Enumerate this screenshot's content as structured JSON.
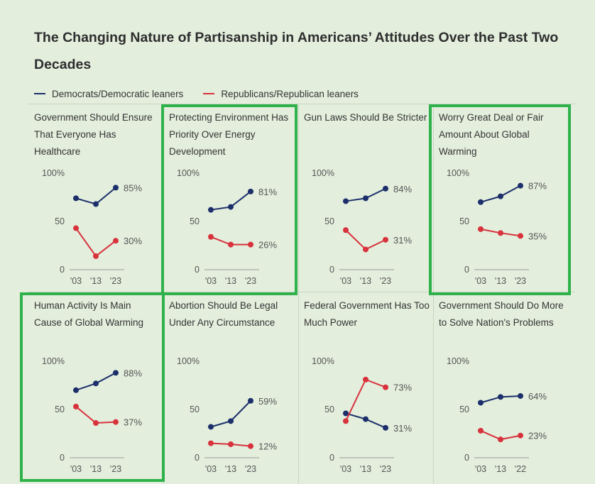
{
  "title": "The Changing Nature of Partisanship in Americans’ Attitudes Over the Past Two Decades",
  "legend": {
    "dem": "Democrats/Democratic leaners",
    "rep": "Republicans/Republican leaners"
  },
  "colors": {
    "dem": "#1c2f6b",
    "rep": "#d8323c",
    "highlight": "#2fb24b"
  },
  "chart_data": {
    "type": "line",
    "y_ticks": [
      "100%",
      "50",
      "0"
    ],
    "ylim": [
      0,
      100
    ],
    "panels": [
      {
        "title": "Government  Should Ensure That Everyone Has Healthcare",
        "x_labels": [
          "'03",
          "'13",
          "'23"
        ],
        "series": [
          {
            "name": "Democrats/Democratic leaners",
            "values": [
              74,
              68,
              85
            ],
            "end_label": "85%"
          },
          {
            "name": "Republicans/Republican leaners",
            "values": [
              43,
              14,
              30
            ],
            "end_label": "30%"
          }
        ],
        "highlighted": false
      },
      {
        "title": "Protecting Environment Has Priority Over Energy Development",
        "x_labels": [
          "'03",
          "'13",
          "'23"
        ],
        "series": [
          {
            "name": "Democrats/Democratic leaners",
            "values": [
              62,
              65,
              81
            ],
            "end_label": "81%"
          },
          {
            "name": "Republicans/Republican leaners",
            "values": [
              34,
              26,
              26
            ],
            "end_label": "26%"
          }
        ],
        "highlighted": true
      },
      {
        "title": "Gun Laws Should Be Stricter",
        "x_labels": [
          "'03",
          "'13",
          "'23"
        ],
        "series": [
          {
            "name": "Democrats/Democratic leaners",
            "values": [
              71,
              74,
              84
            ],
            "end_label": "84%"
          },
          {
            "name": "Republicans/Republican leaners",
            "values": [
              41,
              21,
              31
            ],
            "end_label": "31%"
          }
        ],
        "highlighted": false
      },
      {
        "title": "Worry Great Deal or Fair Amount About Global Warming",
        "x_labels": [
          "'03",
          "'13",
          "'23"
        ],
        "series": [
          {
            "name": "Democrats/Democratic leaners",
            "values": [
              70,
              76,
              87
            ],
            "end_label": "87%"
          },
          {
            "name": "Republicans/Republican leaners",
            "values": [
              42,
              38,
              35
            ],
            "end_label": "35%"
          }
        ],
        "highlighted": true
      },
      {
        "title": "Human Activity Is Main Cause of Global Warming",
        "x_labels": [
          "'03",
          "'13",
          "'23"
        ],
        "series": [
          {
            "name": "Democrats/Democratic leaners",
            "values": [
              70,
              77,
              88
            ],
            "end_label": "88%"
          },
          {
            "name": "Republicans/Republican leaners",
            "values": [
              53,
              36,
              37
            ],
            "end_label": "37%"
          }
        ],
        "highlighted": true
      },
      {
        "title": "Abortion Should Be Legal Under Any Circumstance",
        "x_labels": [
          "'03",
          "'13",
          "'23"
        ],
        "series": [
          {
            "name": "Democrats/Democratic leaners",
            "values": [
              32,
              38,
              59
            ],
            "end_label": "59%"
          },
          {
            "name": "Republicans/Republican leaners",
            "values": [
              15,
              14,
              12
            ],
            "end_label": "12%"
          }
        ],
        "highlighted": false
      },
      {
        "title": "Federal Government Has Too Much Power",
        "x_labels": [
          "'03",
          "'13",
          "'23"
        ],
        "series": [
          {
            "name": "Democrats/Democratic leaners",
            "values": [
              46,
              40,
              31
            ],
            "end_label": "31%"
          },
          {
            "name": "Republicans/Republican leaners",
            "values": [
              38,
              81,
              73
            ],
            "end_label": "73%"
          }
        ],
        "highlighted": false
      },
      {
        "title": "Government Should Do More to Solve Nation's Problems",
        "x_labels": [
          "'03",
          "'13",
          "'22"
        ],
        "series": [
          {
            "name": "Democrats/Democratic leaners",
            "values": [
              57,
              63,
              64
            ],
            "end_label": "64%"
          },
          {
            "name": "Republicans/Republican leaners",
            "values": [
              28,
              19,
              23
            ],
            "end_label": "23%"
          }
        ],
        "highlighted": false
      }
    ]
  }
}
